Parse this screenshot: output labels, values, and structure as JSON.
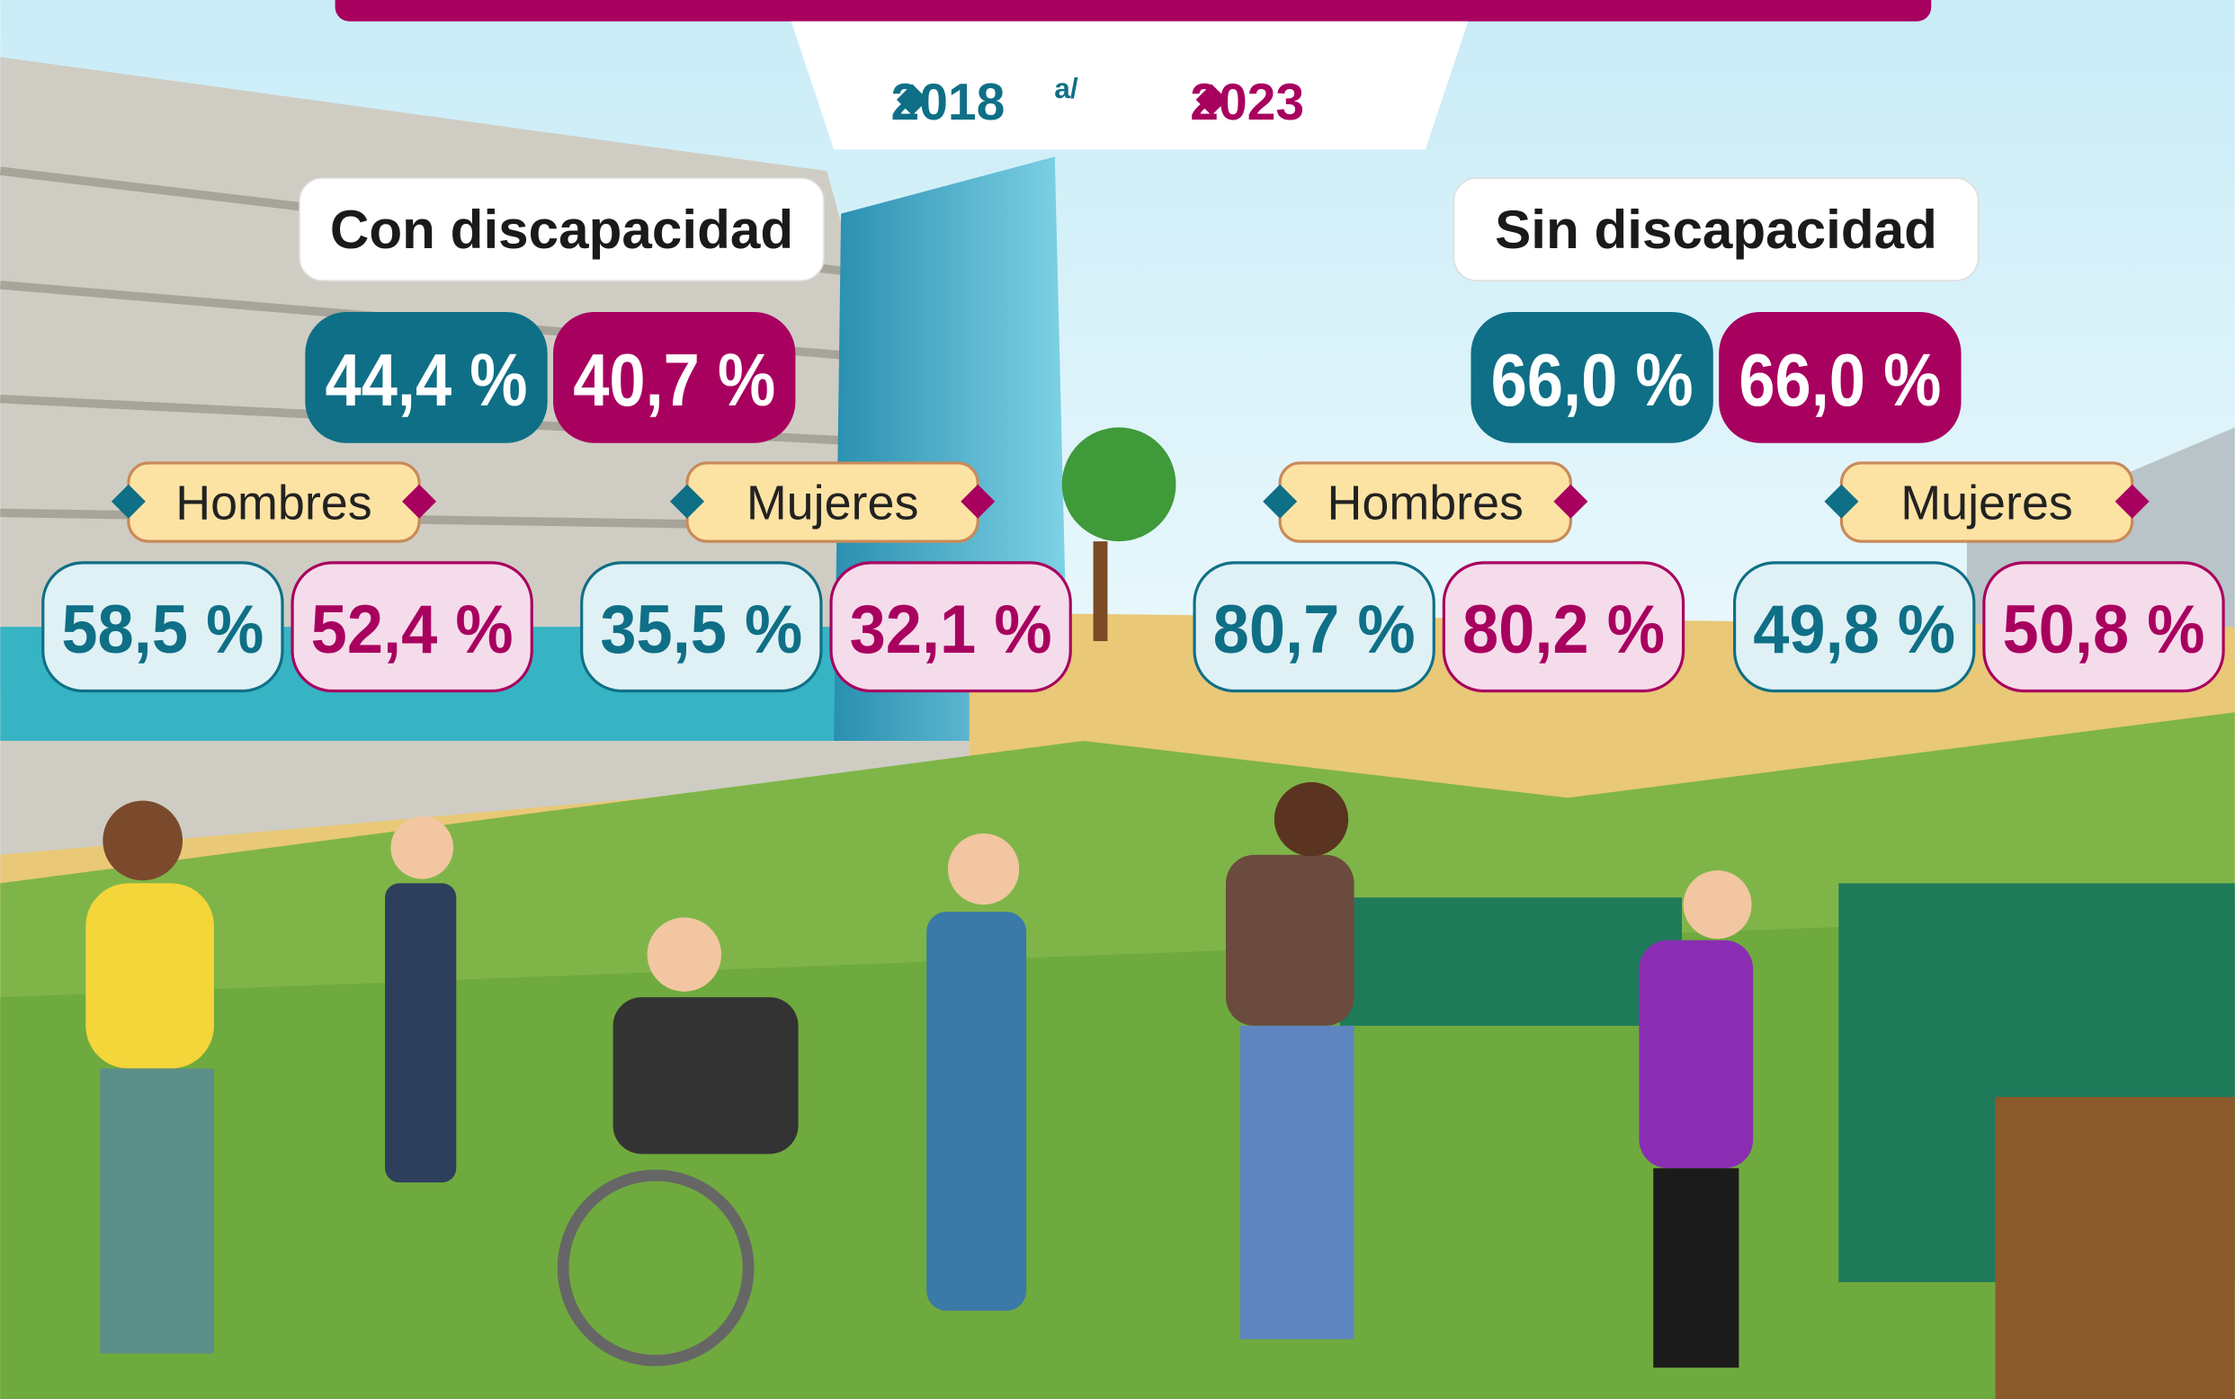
{
  "legend": [
    {
      "label": "2018",
      "note": "a/"
    },
    {
      "label": "2023"
    }
  ],
  "groups": [
    {
      "title": "Con discapacidad",
      "total": [
        "44,4 %",
        "40,7 %"
      ],
      "subgroups": [
        {
          "label": "Hombres",
          "values": [
            "58,5 %",
            "52,4 %"
          ]
        },
        {
          "label": "Mujeres",
          "values": [
            "35,5 %",
            "32,1 %"
          ]
        }
      ]
    },
    {
      "title": "Sin discapacidad",
      "total": [
        "66,0 %",
        "66,0 %"
      ],
      "subgroups": [
        {
          "label": "Hombres",
          "values": [
            "80,7 %",
            "80,2 %"
          ]
        },
        {
          "label": "Mujeres",
          "values": [
            "49,8 %",
            "50,8 %"
          ]
        }
      ]
    }
  ]
}
